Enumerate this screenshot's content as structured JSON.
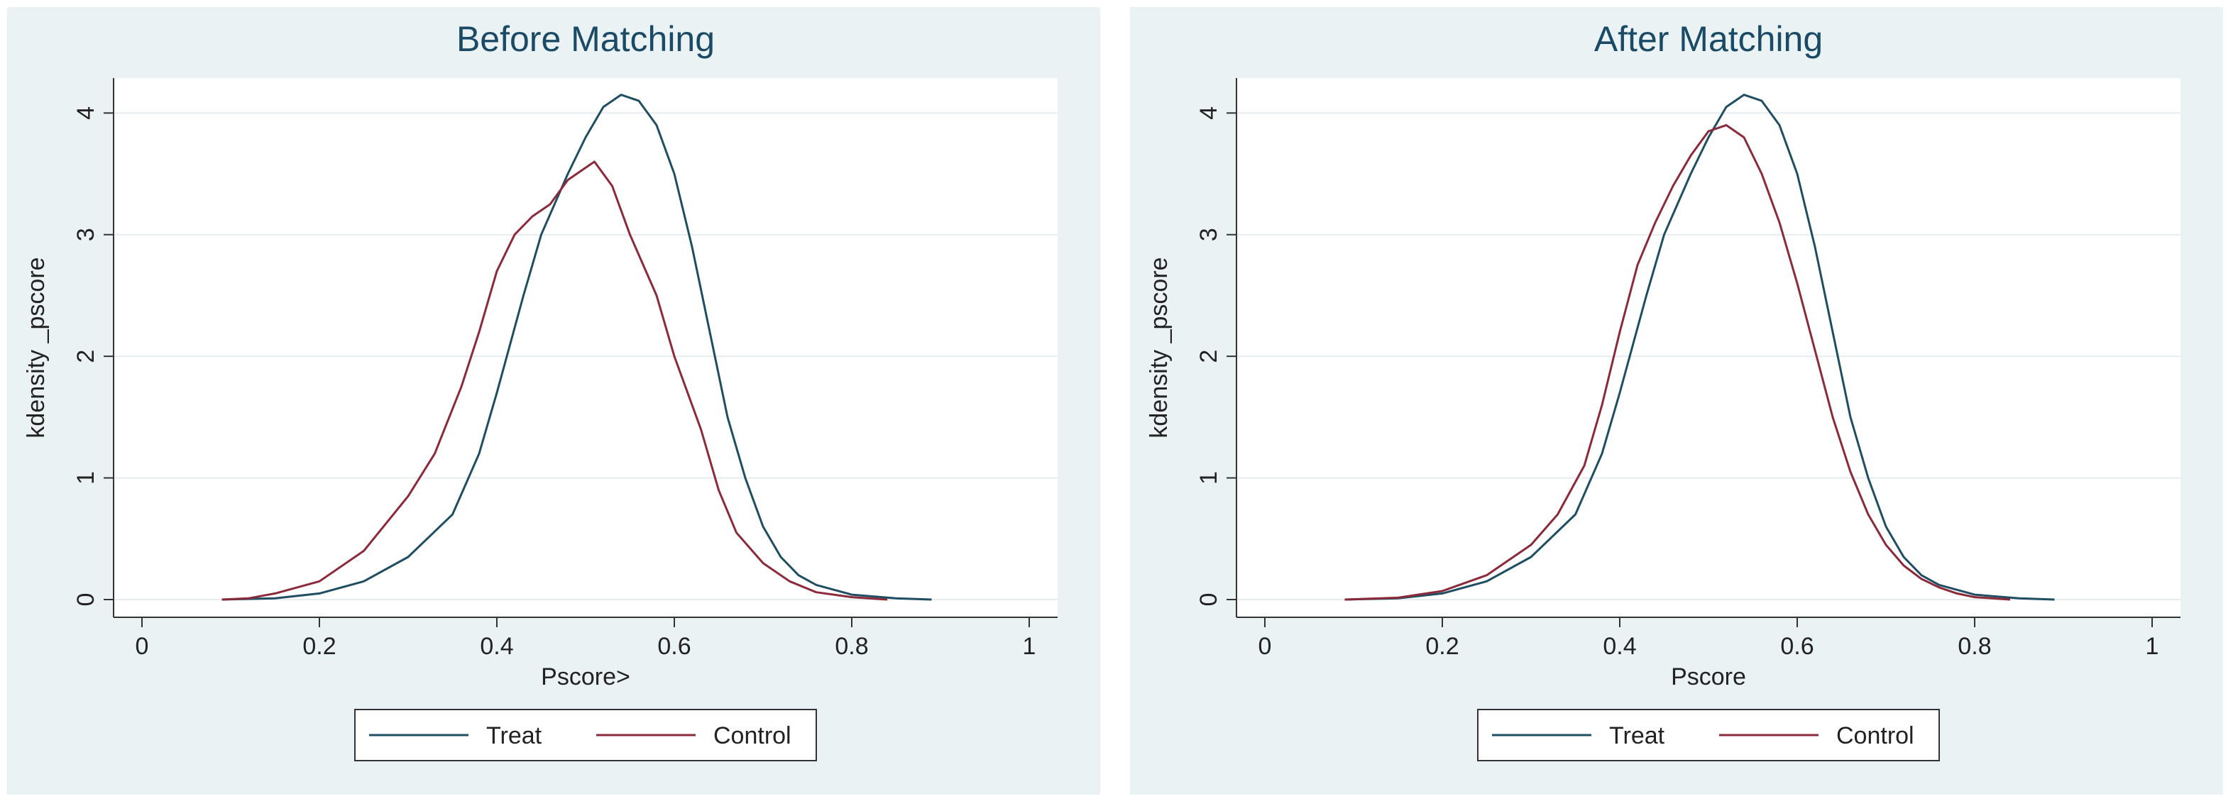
{
  "colors": {
    "treat": "#1f4e63",
    "control": "#8b2a3a",
    "panel_bg": "#eaf2f3",
    "plot_bg": "#ffffff",
    "grid": "#e6ecef",
    "title": "#1a4a66"
  },
  "chart_data": [
    {
      "type": "line",
      "title": "Before Matching",
      "xlabel": "Pscore>",
      "ylabel": "kdensity _pscore",
      "xlim": [
        0,
        1
      ],
      "ylim": [
        0,
        4.2
      ],
      "xticks": [
        "0",
        "0.2",
        "0.4",
        "0.6",
        "0.8",
        "1"
      ],
      "yticks": [
        "0",
        "1",
        "2",
        "3",
        "4"
      ],
      "grid": true,
      "legend": {
        "position": "bottom",
        "entries": [
          "Treat",
          "Control"
        ]
      },
      "series": [
        {
          "name": "Treat",
          "points": [
            [
              0.09,
              0
            ],
            [
              0.15,
              0.01
            ],
            [
              0.2,
              0.05
            ],
            [
              0.25,
              0.15
            ],
            [
              0.3,
              0.35
            ],
            [
              0.35,
              0.7
            ],
            [
              0.38,
              1.2
            ],
            [
              0.4,
              1.7
            ],
            [
              0.43,
              2.5
            ],
            [
              0.45,
              3.0
            ],
            [
              0.48,
              3.5
            ],
            [
              0.5,
              3.8
            ],
            [
              0.52,
              4.05
            ],
            [
              0.54,
              4.15
            ],
            [
              0.56,
              4.1
            ],
            [
              0.58,
              3.9
            ],
            [
              0.6,
              3.5
            ],
            [
              0.62,
              2.9
            ],
            [
              0.64,
              2.2
            ],
            [
              0.66,
              1.5
            ],
            [
              0.68,
              1.0
            ],
            [
              0.7,
              0.6
            ],
            [
              0.72,
              0.35
            ],
            [
              0.74,
              0.2
            ],
            [
              0.76,
              0.12
            ],
            [
              0.8,
              0.04
            ],
            [
              0.85,
              0.01
            ],
            [
              0.89,
              0
            ]
          ]
        },
        {
          "name": "Control",
          "points": [
            [
              0.09,
              0
            ],
            [
              0.12,
              0.01
            ],
            [
              0.15,
              0.05
            ],
            [
              0.2,
              0.15
            ],
            [
              0.25,
              0.4
            ],
            [
              0.3,
              0.85
            ],
            [
              0.33,
              1.2
            ],
            [
              0.36,
              1.75
            ],
            [
              0.38,
              2.2
            ],
            [
              0.4,
              2.7
            ],
            [
              0.42,
              3.0
            ],
            [
              0.44,
              3.15
            ],
            [
              0.46,
              3.25
            ],
            [
              0.48,
              3.45
            ],
            [
              0.5,
              3.55
            ],
            [
              0.51,
              3.6
            ],
            [
              0.53,
              3.4
            ],
            [
              0.55,
              3.0
            ],
            [
              0.58,
              2.5
            ],
            [
              0.6,
              2.0
            ],
            [
              0.63,
              1.4
            ],
            [
              0.65,
              0.9
            ],
            [
              0.67,
              0.55
            ],
            [
              0.7,
              0.3
            ],
            [
              0.73,
              0.15
            ],
            [
              0.76,
              0.06
            ],
            [
              0.8,
              0.02
            ],
            [
              0.84,
              0
            ]
          ]
        }
      ]
    },
    {
      "type": "line",
      "title": "After Matching",
      "xlabel": "Pscore",
      "ylabel": "kdensity _pscore",
      "xlim": [
        0,
        1
      ],
      "ylim": [
        0,
        4.2
      ],
      "xticks": [
        "0",
        "0.2",
        "0.4",
        "0.6",
        "0.8",
        "1"
      ],
      "yticks": [
        "0",
        "1",
        "2",
        "3",
        "4"
      ],
      "grid": true,
      "legend": {
        "position": "bottom",
        "entries": [
          "Treat",
          "Control"
        ]
      },
      "series": [
        {
          "name": "Treat",
          "points": [
            [
              0.09,
              0
            ],
            [
              0.15,
              0.01
            ],
            [
              0.2,
              0.05
            ],
            [
              0.25,
              0.15
            ],
            [
              0.3,
              0.35
            ],
            [
              0.35,
              0.7
            ],
            [
              0.38,
              1.2
            ],
            [
              0.4,
              1.7
            ],
            [
              0.43,
              2.5
            ],
            [
              0.45,
              3.0
            ],
            [
              0.48,
              3.5
            ],
            [
              0.5,
              3.8
            ],
            [
              0.52,
              4.05
            ],
            [
              0.54,
              4.15
            ],
            [
              0.56,
              4.1
            ],
            [
              0.58,
              3.9
            ],
            [
              0.6,
              3.5
            ],
            [
              0.62,
              2.9
            ],
            [
              0.64,
              2.2
            ],
            [
              0.66,
              1.5
            ],
            [
              0.68,
              1.0
            ],
            [
              0.7,
              0.6
            ],
            [
              0.72,
              0.35
            ],
            [
              0.74,
              0.2
            ],
            [
              0.76,
              0.12
            ],
            [
              0.8,
              0.04
            ],
            [
              0.85,
              0.01
            ],
            [
              0.89,
              0
            ]
          ]
        },
        {
          "name": "Control",
          "points": [
            [
              0.09,
              0
            ],
            [
              0.15,
              0.015
            ],
            [
              0.2,
              0.07
            ],
            [
              0.25,
              0.2
            ],
            [
              0.3,
              0.45
            ],
            [
              0.33,
              0.7
            ],
            [
              0.36,
              1.1
            ],
            [
              0.38,
              1.6
            ],
            [
              0.4,
              2.2
            ],
            [
              0.42,
              2.75
            ],
            [
              0.44,
              3.1
            ],
            [
              0.46,
              3.4
            ],
            [
              0.48,
              3.65
            ],
            [
              0.5,
              3.85
            ],
            [
              0.52,
              3.9
            ],
            [
              0.54,
              3.8
            ],
            [
              0.56,
              3.5
            ],
            [
              0.58,
              3.1
            ],
            [
              0.6,
              2.6
            ],
            [
              0.62,
              2.05
            ],
            [
              0.64,
              1.5
            ],
            [
              0.66,
              1.05
            ],
            [
              0.68,
              0.7
            ],
            [
              0.7,
              0.45
            ],
            [
              0.72,
              0.28
            ],
            [
              0.74,
              0.17
            ],
            [
              0.76,
              0.1
            ],
            [
              0.78,
              0.05
            ],
            [
              0.8,
              0.02
            ],
            [
              0.84,
              0
            ]
          ]
        }
      ]
    }
  ]
}
